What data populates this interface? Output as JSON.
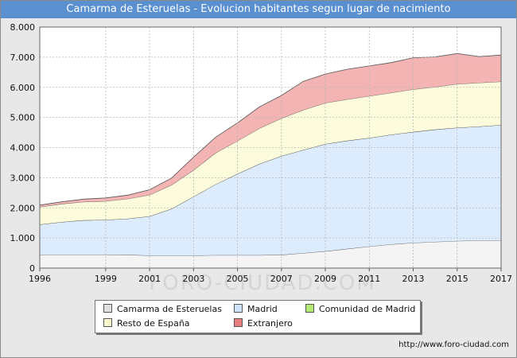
{
  "title": "Camarma de Esteruelas - Evolucion habitantes segun lugar de nacimiento",
  "watermark": "FORO-CIUDAD.COM",
  "source": "http://www.foro-ciudad.com",
  "chart_data": {
    "type": "area",
    "stacked": true,
    "x": [
      1996,
      1997,
      1998,
      1999,
      2000,
      2001,
      2002,
      2003,
      2004,
      2005,
      2006,
      2007,
      2008,
      2009,
      2010,
      2011,
      2012,
      2013,
      2014,
      2015,
      2016,
      2017
    ],
    "x_ticks": [
      "1996",
      "1999",
      "2001",
      "2003",
      "2005",
      "2007",
      "2009",
      "2011",
      "2013",
      "2015",
      "2017"
    ],
    "y_ticks": [
      "0",
      "1.000",
      "2.000",
      "3.000",
      "4.000",
      "5.000",
      "6.000",
      "7.000",
      "8.000"
    ],
    "ylim": [
      0,
      8000
    ],
    "grid": true,
    "legend_position": "bottom",
    "series": [
      {
        "name": "Camarma de Esteruelas",
        "color": "#f4f4f4",
        "values": [
          450,
          450,
          450,
          450,
          440,
          420,
          420,
          420,
          430,
          430,
          430,
          440,
          500,
          560,
          640,
          720,
          790,
          840,
          870,
          900,
          920,
          920
        ]
      },
      {
        "name": "Madrid",
        "color": "#dcecfc",
        "values": [
          1000,
          1080,
          1140,
          1150,
          1200,
          1300,
          1550,
          1950,
          2350,
          2700,
          3030,
          3280,
          3420,
          3560,
          3590,
          3600,
          3640,
          3680,
          3730,
          3760,
          3780,
          3830
        ]
      },
      {
        "name": "Comunidad de Madrid",
        "color": "#c8f0a0",
        "values": [
          0,
          0,
          0,
          0,
          0,
          0,
          0,
          0,
          0,
          0,
          0,
          0,
          0,
          0,
          0,
          0,
          0,
          0,
          0,
          0,
          0,
          0
        ]
      },
      {
        "name": "Resto de España",
        "color": "#fcfcdc",
        "values": [
          580,
          600,
          610,
          620,
          660,
          710,
          790,
          880,
          1040,
          1090,
          1180,
          1250,
          1330,
          1360,
          1370,
          1390,
          1390,
          1410,
          1410,
          1450,
          1450,
          1440
        ]
      },
      {
        "name": "Extranjero",
        "color": "#f4b4b4",
        "values": [
          60,
          70,
          90,
          110,
          120,
          170,
          230,
          430,
          520,
          600,
          710,
          760,
          950,
          960,
          1000,
          1000,
          1000,
          1050,
          1000,
          1010,
          870,
          880
        ]
      }
    ]
  },
  "legend": {
    "items": [
      {
        "label": "Camarma de Esteruelas",
        "color": "#e0e0e0"
      },
      {
        "label": "Madrid",
        "color": "#cfe3fb"
      },
      {
        "label": "Comunidad de Madrid",
        "color": "#b2ea74"
      },
      {
        "label": "Resto de España",
        "color": "#fafacc"
      },
      {
        "label": "Extranjero",
        "color": "#e87e7e"
      }
    ]
  }
}
